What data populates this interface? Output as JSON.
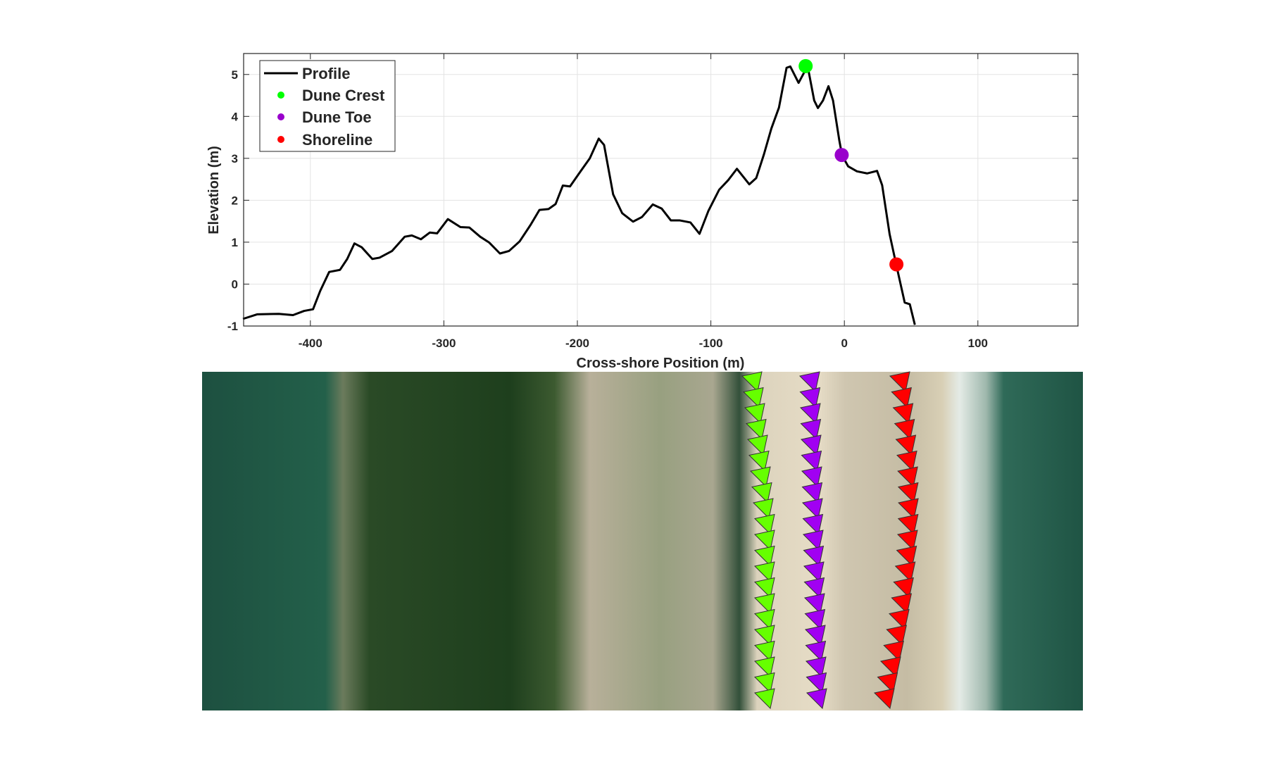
{
  "chart_data": {
    "type": "line",
    "xlabel": "Cross-shore Position (m)",
    "ylabel": "Elevation (m)",
    "xlim": [
      -450,
      175
    ],
    "ylim": [
      -1,
      5.5
    ],
    "xticks": [
      -400,
      -300,
      -200,
      -100,
      0,
      100
    ],
    "xtick_labels": [
      "-400",
      "-300",
      "-200",
      "-100",
      "0",
      "100"
    ],
    "yticks": [
      -1,
      0,
      1,
      2,
      3,
      4,
      5
    ],
    "ytick_labels": [
      "-1",
      "0",
      "1",
      "2",
      "3",
      "4",
      "5"
    ],
    "grid": true,
    "legend_position": "top-left",
    "series": [
      {
        "name": "Profile",
        "color": "#000000",
        "x": [
          -450.5,
          -439.7,
          -423.6,
          -413,
          -404.7,
          -398,
          -392.6,
          -385.9,
          -377.8,
          -372.4,
          -367,
          -361.6,
          -353.6,
          -348.2,
          -338.8,
          -329.3,
          -324,
          -317.2,
          -310.5,
          -305.1,
          -297,
          -287.6,
          -280.9,
          -272.8,
          -266,
          -258,
          -251.2,
          -243.2,
          -235.1,
          -228.4,
          -221.6,
          -216.3,
          -210.9,
          -205.5,
          -197.4,
          -190.7,
          -184,
          -180,
          -173.2,
          -166.4,
          -158.3,
          -151.6,
          -143.5,
          -136.8,
          -130,
          -123.5,
          -115.3,
          -108.5,
          -101.8,
          -93.8,
          -87,
          -80.5,
          -71.2,
          -66,
          -60.3,
          -54.7,
          -49,
          -43.3,
          -40.5,
          -34.3,
          -30.1,
          -26.8,
          -22.6,
          -19.8,
          -16,
          -11.9,
          -8.5,
          -3.8,
          -1.7,
          2.8,
          9.4,
          17,
          24.5,
          28.3,
          33.9,
          38.8,
          45.2,
          49,
          52.8
        ],
        "y": [
          -0.83,
          -0.72,
          -0.71,
          -0.74,
          -0.64,
          -0.6,
          -0.16,
          0.29,
          0.34,
          0.6,
          0.97,
          0.88,
          0.6,
          0.63,
          0.79,
          1.13,
          1.16,
          1.07,
          1.23,
          1.21,
          1.55,
          1.36,
          1.35,
          1.13,
          0.99,
          0.73,
          0.79,
          1.02,
          1.41,
          1.77,
          1.79,
          1.91,
          2.35,
          2.33,
          2.7,
          3.0,
          3.47,
          3.32,
          2.14,
          1.69,
          1.49,
          1.6,
          1.9,
          1.8,
          1.52,
          1.52,
          1.47,
          1.2,
          1.75,
          2.25,
          2.48,
          2.75,
          2.38,
          2.53,
          3.09,
          3.71,
          4.21,
          5.16,
          5.19,
          4.8,
          5.05,
          5.08,
          4.38,
          4.2,
          4.38,
          4.72,
          4.38,
          3.43,
          3.07,
          2.81,
          2.69,
          2.64,
          2.7,
          2.36,
          1.19,
          0.47,
          -0.44,
          -0.48,
          -0.97
        ]
      },
      {
        "name": "Dune Crest",
        "color": "#00ff00",
        "type": "scatter",
        "x": [
          -29
        ],
        "y": [
          5.2
        ]
      },
      {
        "name": "Dune Toe",
        "color": "#9900cc",
        "type": "scatter",
        "x": [
          -2
        ],
        "y": [
          3.08
        ]
      },
      {
        "name": "Shoreline",
        "color": "#ff0000",
        "type": "scatter",
        "x": [
          39
        ],
        "y": [
          0.47
        ]
      }
    ]
  },
  "aerial_image": {
    "marker_colors": {
      "dune_crest": "#66ff00",
      "dune_toe": "#a100f2",
      "shoreline": "#ff0000"
    }
  }
}
